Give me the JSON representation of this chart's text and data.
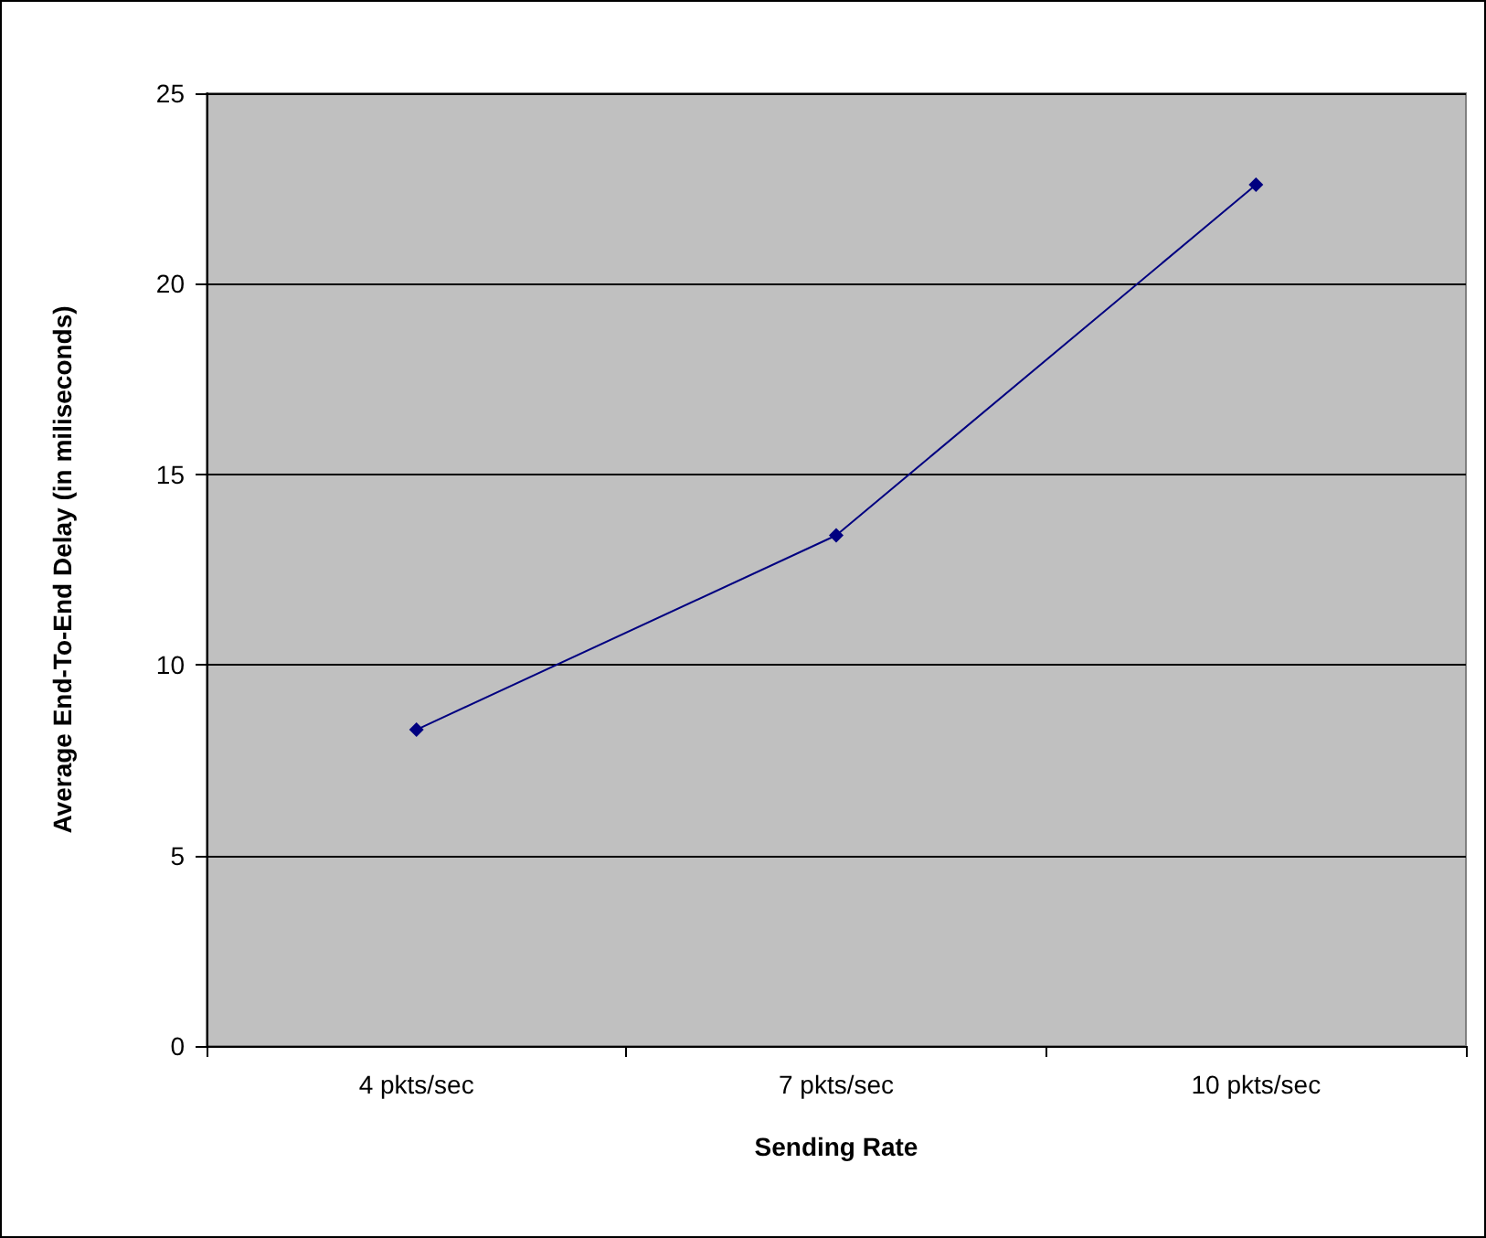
{
  "chart_data": {
    "type": "line",
    "xlabel": "Sending Rate",
    "ylabel": "Average End-To-End Delay (in miliseconds)",
    "categories": [
      "4 pkts/sec",
      "7 pkts/sec",
      "10 pkts/sec"
    ],
    "series": [
      {
        "color": "#000080",
        "values": [
          8.3,
          13.4,
          22.6
        ]
      }
    ],
    "ylim": [
      0,
      25
    ],
    "yticks": [
      0,
      5,
      10,
      15,
      20,
      25
    ],
    "grid": "y",
    "marker": "diamond",
    "line_style": "solid"
  }
}
